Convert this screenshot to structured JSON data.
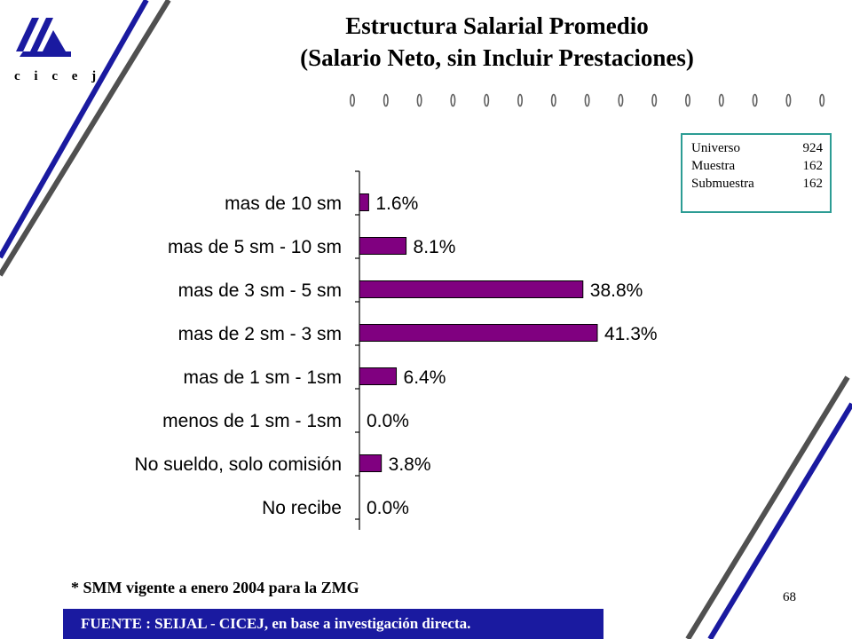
{
  "header": {
    "title_line1": "Estructura Salarial Promedio",
    "title_line2": "(Salario Neto, sin Incluir Prestaciones)",
    "logo_text": "c i c e j",
    "logo_icon": "cicej-logo-icon"
  },
  "sample": {
    "rows": [
      {
        "label": "Universo",
        "value": "924"
      },
      {
        "label": "Muestra",
        "value": "162"
      },
      {
        "label": "Submuestra",
        "value": "162"
      }
    ]
  },
  "chart_data": {
    "type": "bar",
    "orientation": "horizontal",
    "categories": [
      "mas de 10 sm",
      "mas de 5 sm - 10 sm",
      "mas de 3 sm - 5 sm",
      "mas de 2 sm - 3 sm",
      "mas de 1 sm - 1sm",
      "menos de 1 sm - 1sm",
      "No sueldo, solo comisión",
      "No recibe"
    ],
    "values": [
      1.6,
      8.1,
      38.8,
      41.3,
      6.4,
      0.0,
      3.8,
      0.0
    ],
    "value_labels": [
      "1.6%",
      "8.1%",
      "38.8%",
      "41.3%",
      "6.4%",
      "0.0%",
      "3.8%",
      "0.0%"
    ],
    "unit": "%",
    "xlim": [
      0,
      41.3
    ],
    "bar_color": "#800080",
    "grid": false,
    "legend": "none"
  },
  "footnote": "* SMM vigente a enero 2004  para la ZMG",
  "page_number": "68",
  "source": "FUENTE :  SEIJAL - CICEJ,  en base a investigación directa.",
  "colors": {
    "accent_blue": "#1a1aa0",
    "stripe_gray": "#505050",
    "box_border": "#2c9c94"
  }
}
